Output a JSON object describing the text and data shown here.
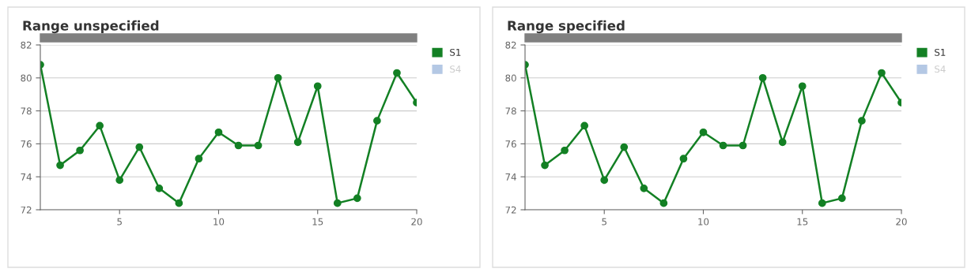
{
  "chart_data": [
    {
      "type": "line",
      "title": "Range unspecified",
      "x": [
        1,
        2,
        3,
        4,
        5,
        6,
        7,
        8,
        9,
        10,
        11,
        12,
        13,
        14,
        15,
        16,
        17,
        18,
        19,
        20
      ],
      "series": [
        {
          "name": "S1",
          "color": "#138024",
          "values": [
            80.8,
            74.7,
            75.6,
            77.1,
            73.8,
            75.8,
            73.3,
            72.4,
            75.1,
            76.7,
            75.9,
            75.9,
            80.0,
            76.1,
            79.5,
            72.4,
            72.7,
            77.4,
            80.3,
            78.5
          ]
        },
        {
          "name": "S4",
          "color": "#b4c8e4",
          "values": [
            null,
            null,
            null,
            null,
            null,
            null,
            null,
            null,
            null,
            null,
            null,
            null,
            null,
            null,
            null,
            null,
            null,
            null,
            null,
            null
          ]
        }
      ],
      "xlim": [
        1,
        20
      ],
      "xticks": [
        5,
        10,
        15,
        20
      ],
      "ylim": [
        72,
        82
      ],
      "yticks": [
        72,
        74,
        76,
        78,
        80,
        82
      ],
      "grid": "y",
      "legend": "top right",
      "marker": "circle",
      "line_style": "solid"
    },
    {
      "type": "line",
      "title": "Range specified",
      "x": [
        1,
        2,
        3,
        4,
        5,
        6,
        7,
        8,
        9,
        10,
        11,
        12,
        13,
        14,
        15,
        16,
        17,
        18,
        19,
        20
      ],
      "series": [
        {
          "name": "S1",
          "color": "#138024",
          "values": [
            80.8,
            74.7,
            75.6,
            77.1,
            73.8,
            75.8,
            73.3,
            72.4,
            75.1,
            76.7,
            75.9,
            75.9,
            80.0,
            76.1,
            79.5,
            72.4,
            72.7,
            77.4,
            80.3,
            78.5
          ]
        },
        {
          "name": "S4",
          "color": "#b4c8e4",
          "values": [
            null,
            null,
            null,
            null,
            null,
            null,
            null,
            null,
            null,
            null,
            null,
            null,
            null,
            null,
            null,
            null,
            null,
            null,
            null,
            null
          ]
        }
      ],
      "xlim": [
        1,
        20
      ],
      "xticks": [
        5,
        10,
        15,
        20
      ],
      "ylim": [
        72,
        82
      ],
      "yticks": [
        72,
        74,
        76,
        78,
        80,
        82
      ],
      "grid": "y",
      "legend": "top right",
      "marker": "circle",
      "line_style": "solid"
    }
  ]
}
